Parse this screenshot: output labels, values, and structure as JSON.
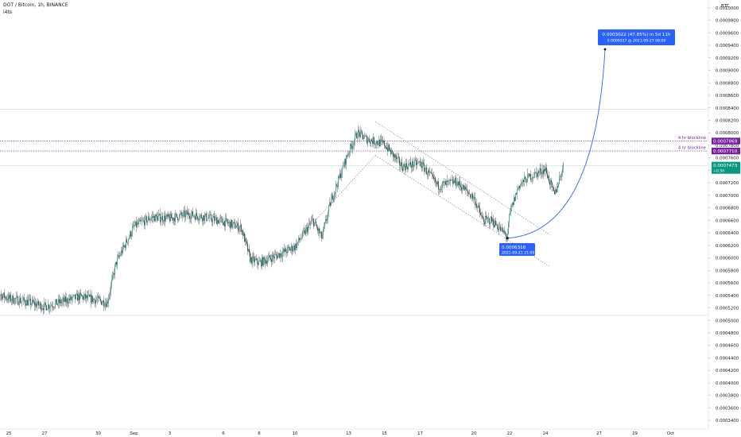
{
  "header": {
    "symbol_line": "DOT / Bitcoin, 1h, BINANCE",
    "indicator": "i4ts"
  },
  "colors": {
    "candle": "#26a69a",
    "wick": "#1c2b2a",
    "level_line": "#5b2c6f",
    "badge_purple": "#7b1fa2",
    "current_badge": "#089981",
    "projection": "#2962ff",
    "info_box": "#2962ff",
    "grid_hline": "#d1d4dc"
  },
  "chart_data": {
    "type": "candlestick",
    "symbol": "DOT / Bitcoin",
    "interval": "1h",
    "exchange": "BINANCE",
    "currency": "BTC",
    "ylim": [
      0.00033,
      0.00101
    ],
    "y_ticks": [
      "0.0003400",
      "0.0003600",
      "0.0003800",
      "0.0004000",
      "0.0004200",
      "0.0004400",
      "0.0004600",
      "0.0004800",
      "0.0005000",
      "0.0005200",
      "0.0005400",
      "0.0005600",
      "0.0005800",
      "0.0006000",
      "0.0006200",
      "0.0006400",
      "0.0006600",
      "0.0006800",
      "0.0007000",
      "0.0007200",
      "0.0007400",
      "0.0007600",
      "0.0007800",
      "0.0008000",
      "0.0008200",
      "0.0008400",
      "0.0008600",
      "0.0008800",
      "0.0009000",
      "0.0009200",
      "0.0009400",
      "0.0009600",
      "0.0009800",
      "0.0010000"
    ],
    "y_tick_values": [
      0.00034,
      0.00036,
      0.00038,
      0.0004,
      0.00042,
      0.00044,
      0.00046,
      0.00048,
      0.0005,
      0.00052,
      0.00054,
      0.00056,
      0.00058,
      0.0006,
      0.00062,
      0.00064,
      0.00066,
      0.00068,
      0.0007,
      0.00072,
      0.00074,
      0.00076,
      0.00078,
      0.0008,
      0.00082,
      0.00084,
      0.00086,
      0.00088,
      0.0009,
      0.00092,
      0.00094,
      0.00096,
      0.00098,
      0.001
    ],
    "x_ticks": [
      "25",
      "27",
      "30",
      "Sep",
      "3",
      "6",
      "8",
      "10",
      "13",
      "15",
      "17",
      "20",
      "22",
      "24",
      "27",
      "29",
      "Oct"
    ],
    "x_tick_dates": [
      "2021-08-25",
      "2021-08-27",
      "2021-08-30",
      "2021-09-01",
      "2021-09-03",
      "2021-09-06",
      "2021-09-08",
      "2021-09-10",
      "2021-09-13",
      "2021-09-15",
      "2021-09-17",
      "2021-09-20",
      "2021-09-22",
      "2021-09-24",
      "2021-09-27",
      "2021-09-29",
      "2021-10-01"
    ],
    "price_path": [
      [
        "2021-08-24",
        0.000548
      ],
      [
        "2021-08-25",
        0.000535
      ],
      [
        "2021-08-26",
        0.00053
      ],
      [
        "2021-08-27",
        0.000522
      ],
      [
        "2021-08-28",
        0.00053
      ],
      [
        "2021-08-29",
        0.000538
      ],
      [
        "2021-08-30",
        0.000532
      ],
      [
        "2021-08-30T12:00",
        0.000528
      ],
      [
        "2021-08-31",
        0.000592
      ],
      [
        "2021-09-01",
        0.00065
      ],
      [
        "2021-09-02",
        0.000665
      ],
      [
        "2021-09-03",
        0.000663
      ],
      [
        "2021-09-04",
        0.00067
      ],
      [
        "2021-09-05",
        0.000665
      ],
      [
        "2021-09-06",
        0.000658
      ],
      [
        "2021-09-07",
        0.000648
      ],
      [
        "2021-09-07T12:00",
        0.000598
      ],
      [
        "2021-09-08",
        0.000592
      ],
      [
        "2021-09-09",
        0.000604
      ],
      [
        "2021-09-10",
        0.000618
      ],
      [
        "2021-09-11",
        0.00066
      ],
      [
        "2021-09-11T12:00",
        0.000632
      ],
      [
        "2021-09-12",
        0.00069
      ],
      [
        "2021-09-13",
        0.00077
      ],
      [
        "2021-09-13T12:00",
        0.0008
      ],
      [
        "2021-09-14",
        0.00079
      ],
      [
        "2021-09-15",
        0.000782
      ],
      [
        "2021-09-16",
        0.000746
      ],
      [
        "2021-09-17",
        0.000752
      ],
      [
        "2021-09-18",
        0.000715
      ],
      [
        "2021-09-19",
        0.000722
      ],
      [
        "2021-09-20",
        0.000696
      ],
      [
        "2021-09-20T12:00",
        0.00066
      ],
      [
        "2021-09-21",
        0.00066
      ],
      [
        "2021-09-21T21:00",
        0.000634
      ],
      [
        "2021-09-22",
        0.00067
      ],
      [
        "2021-09-22T12:00",
        0.000715
      ],
      [
        "2021-09-23",
        0.000728
      ],
      [
        "2021-09-24",
        0.000742
      ],
      [
        "2021-09-24T12:00",
        0.0007
      ],
      [
        "2021-09-25",
        0.000747
      ]
    ],
    "horizontal_levels": [
      {
        "label": "4 hr blockline",
        "price": "0.0007869",
        "value": 0.0007869
      },
      {
        "label": "4 hr blockline",
        "price": "0.0007710",
        "value": 0.000771
      }
    ],
    "range_lines": [
      0.000838,
      0.000508
    ],
    "channel_lines": [
      {
        "from": [
          "2021-09-14T12:00",
          0.000818
        ],
        "to": [
          "2021-09-24T06:00",
          0.000637
        ]
      },
      {
        "from": [
          "2021-09-14T12:00",
          0.000764
        ],
        "to": [
          "2021-09-24T06:00",
          0.000586
        ]
      },
      {
        "from": [
          "2021-09-10T12:00",
          0.00064
        ],
        "to": [
          "2021-09-14T12:00",
          0.000764
        ]
      }
    ],
    "current_price": {
      "price": "0.0007473",
      "change": "+0.50",
      "value": 0.0007473
    },
    "low_marker": {
      "price": "0.0006316",
      "datetime": "2021-09-21 21:00",
      "value": 0.0006316
    },
    "projection": {
      "headline": "0.0003022 (47.85%) in 5d 11h",
      "detail": "0.0009337 @ 2021-09-27 08:00",
      "start": [
        "2021-09-21T21:00",
        0.0006316
      ],
      "end": [
        "2021-09-27T08:00",
        0.0009337
      ]
    }
  }
}
